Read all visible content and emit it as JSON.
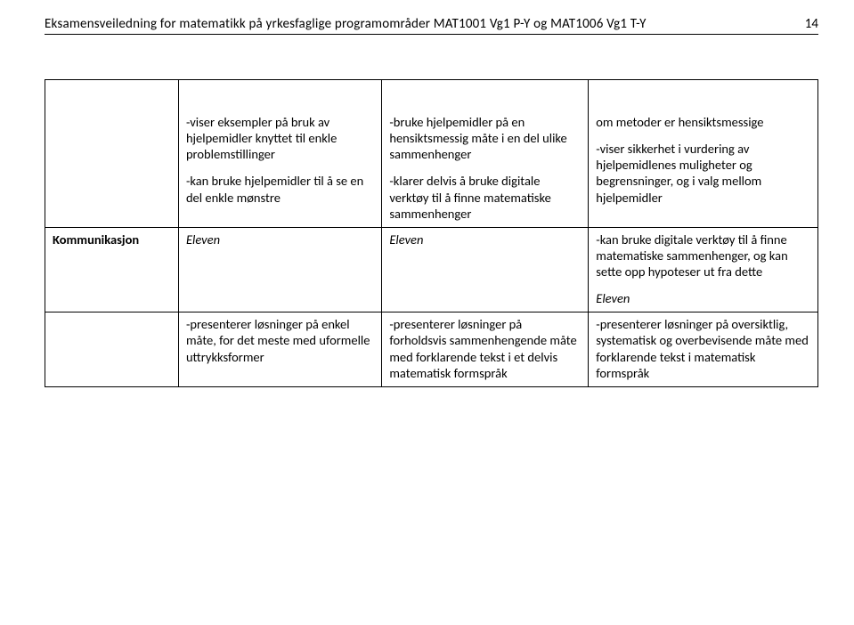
{
  "header": {
    "title": "Eksamensveiledning for matematikk på yrkesfaglige programområder MAT1001 Vg1 P-Y og MAT1006 Vg1 T-Y",
    "page": "14"
  },
  "row1": {
    "a1": "-viser eksempler på bruk av hjelpemidler knyttet til enkle problemstillinger",
    "a2": "-kan bruke hjelpemidler til å se en del enkle mønstre",
    "b1": "-bruke hjelpemidler på en hensiktsmessig måte i en del ulike sammenhenger",
    "b2": "-klarer delvis å bruke digitale verktøy til å finne matematiske sammenhenger",
    "c1": "om metoder er hensiktsmessige",
    "c2": "-viser sikkerhet i vurdering av hjelpemidlenes muligheter og begrensninger, og i valg mellom hjelpemidler"
  },
  "row2": {
    "head": "Kommunikasjon",
    "el_a": "Eleven",
    "el_b": "Eleven",
    "el_c": "Eleven",
    "c_pre": "-kan bruke digitale verktøy til å finne matematiske sammenhenger, og kan sette opp hypoteser ut fra dette"
  },
  "row3": {
    "a": "-presenterer løsninger på enkel måte, for det meste med uformelle uttrykksformer",
    "b": "-presenterer løsninger på forholdsvis sammenhengende måte med forklarende tekst i et delvis matematisk formspråk",
    "c": "-presenterer løsninger på oversiktlig, systematisk og overbevisende måte med forklarende tekst i matematisk formspråk"
  }
}
